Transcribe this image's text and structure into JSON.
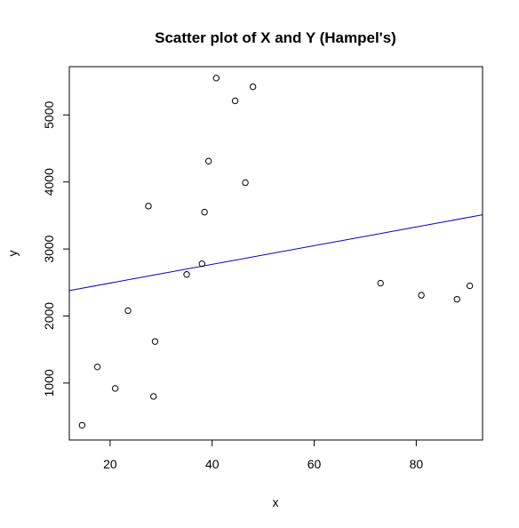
{
  "chart_data": {
    "type": "scatter",
    "title": "Scatter plot of X and Y (Hampel's)",
    "xlabel": "x",
    "ylabel": "y",
    "xlim": [
      12,
      93
    ],
    "ylim": [
      150,
      5720
    ],
    "xticks": [
      20,
      40,
      60,
      80
    ],
    "yticks": [
      1000,
      2000,
      3000,
      4000,
      5000
    ],
    "grid": false,
    "point_color": "#000000",
    "line_color": "#0000cc",
    "points": [
      {
        "x": 14.5,
        "y": 370
      },
      {
        "x": 17.5,
        "y": 1240
      },
      {
        "x": 21,
        "y": 920
      },
      {
        "x": 23.5,
        "y": 2080
      },
      {
        "x": 27.5,
        "y": 3640
      },
      {
        "x": 28.5,
        "y": 800
      },
      {
        "x": 28.8,
        "y": 1620
      },
      {
        "x": 35,
        "y": 2620
      },
      {
        "x": 38,
        "y": 2780
      },
      {
        "x": 38.5,
        "y": 3550
      },
      {
        "x": 39.3,
        "y": 4310
      },
      {
        "x": 40.8,
        "y": 5550
      },
      {
        "x": 44.5,
        "y": 5210
      },
      {
        "x": 46.5,
        "y": 3990
      },
      {
        "x": 48,
        "y": 5420
      },
      {
        "x": 73,
        "y": 2490
      },
      {
        "x": 81,
        "y": 2310
      },
      {
        "x": 88,
        "y": 2250
      },
      {
        "x": 90.5,
        "y": 2450
      }
    ],
    "fit_line": {
      "x": [
        12,
        93
      ],
      "y": [
        2380,
        3510
      ]
    }
  }
}
